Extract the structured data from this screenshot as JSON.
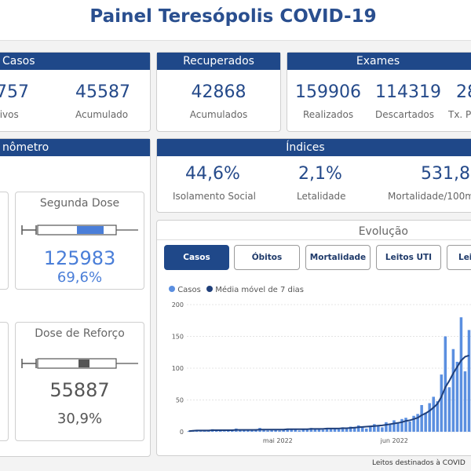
{
  "header": {
    "title": "Painel Teresópolis COVID-19"
  },
  "casos": {
    "title": "Casos",
    "ativos_value": "757",
    "ativos_label": "tivos",
    "acumulado_value": "45587",
    "acumulado_label": "Acumulado"
  },
  "recuperados": {
    "title": "Recuperados",
    "value": "42868",
    "label": "Acumulados"
  },
  "exames": {
    "title": "Exames",
    "realizados_value": "159906",
    "realizados_label": "Realizados",
    "descartados_value": "114319",
    "descartados_label": "Descartados",
    "positivos_value": "28",
    "positivos_label": "Tx. Po"
  },
  "vacinometro": {
    "title": "nômetro",
    "segunda_dose": {
      "title": "Segunda Dose",
      "value": "125983",
      "percent": "69,6%"
    },
    "dose_reforco": {
      "title": "Dose de Reforço",
      "value": "55887",
      "percent": "30,9%"
    }
  },
  "indices": {
    "title": "Índices",
    "isolamento_value": "44,6%",
    "isolamento_label": "Isolamento Social",
    "letalidade_value": "2,1%",
    "letalidade_label": "Letalidade",
    "mortalidade_value": "531,8",
    "mortalidade_label": "Mortalidade/100m"
  },
  "evolucao": {
    "title": "Evolução",
    "tabs": [
      "Casos",
      "Óbitos",
      "Mortalidade",
      "Leitos UTI",
      "Lei"
    ],
    "active_tab": 0
  },
  "footer": {
    "note": "Leitos destinados à COVID"
  },
  "colors": {
    "primary": "#1f4889",
    "bar": "#5b8fe0",
    "line": "#1f3f7a"
  },
  "chart_data": {
    "type": "bar",
    "legend": [
      {
        "name": "Casos",
        "color": "#5b8fe0"
      },
      {
        "name": "Média móvel de 7 dias",
        "color": "#1f3f7a"
      }
    ],
    "ylim": [
      0,
      200
    ],
    "yticks": [
      0,
      50,
      100,
      150,
      200
    ],
    "xticks": [
      "mai 2022",
      "jun 2022"
    ],
    "series": [
      {
        "name": "Casos",
        "values": [
          1,
          2,
          2,
          1,
          3,
          2,
          4,
          3,
          2,
          1,
          3,
          2,
          5,
          3,
          2,
          3,
          2,
          4,
          6,
          3,
          2,
          4,
          3,
          2,
          3,
          5,
          4,
          3,
          2,
          4,
          3,
          6,
          5,
          4,
          3,
          5,
          6,
          5,
          4,
          7,
          5,
          8,
          6,
          10,
          8,
          5,
          9,
          12,
          10,
          7,
          15,
          12,
          18,
          14,
          20,
          22,
          16,
          25,
          28,
          42,
          30,
          45,
          55,
          48,
          90,
          150,
          70,
          130,
          110,
          180,
          95,
          160
        ]
      },
      {
        "name": "Média móvel de 7 dias",
        "values": [
          1,
          1.5,
          2,
          2,
          2,
          2,
          2.5,
          2.5,
          2.5,
          2.5,
          2.5,
          2.5,
          3,
          3,
          3,
          3,
          3,
          3,
          3.5,
          3.5,
          3.5,
          3.5,
          3.5,
          3.5,
          3.5,
          4,
          4,
          4,
          4,
          4,
          4,
          4.5,
          4.5,
          4.5,
          4.5,
          5,
          5,
          5,
          5,
          5.5,
          5.5,
          6,
          6.5,
          7,
          7.5,
          8,
          8.5,
          9,
          9.5,
          10,
          11,
          12,
          13,
          14,
          15,
          17,
          18,
          20,
          22,
          26,
          29,
          33,
          38,
          44,
          55,
          70,
          80,
          92,
          102,
          112,
          118,
          120
        ]
      }
    ]
  }
}
